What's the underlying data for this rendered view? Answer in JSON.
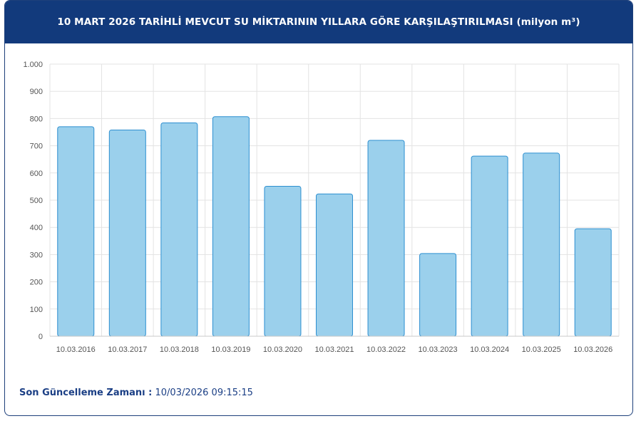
{
  "header": {
    "title": "10 MART 2026 TARİHLİ MEVCUT SU MİKTARININ YILLARA GÖRE KARŞILAŞTIRILMASI (milyon m³)"
  },
  "footer": {
    "label": "Son Güncelleme Zamanı :",
    "value": "10/03/2026 09:15:15"
  },
  "colors": {
    "header_bg": "#123a7c",
    "bar_fill": "#9bd0ec",
    "bar_stroke": "#2d8fd0",
    "footer_text": "#1b3f85"
  },
  "chart_data": {
    "type": "bar",
    "title": "10 MART 2026 TARİHLİ MEVCUT SU MİKTARININ YILLARA GÖRE KARŞILAŞTIRILMASI (milyon m³)",
    "categories": [
      "10.03.2016",
      "10.03.2017",
      "10.03.2018",
      "10.03.2019",
      "10.03.2020",
      "10.03.2021",
      "10.03.2022",
      "10.03.2023",
      "10.03.2024",
      "10.03.2025",
      "10.03.2026"
    ],
    "values": [
      770,
      758,
      784,
      807,
      551,
      523,
      720,
      304,
      662,
      673,
      395
    ],
    "ylim": [
      0,
      1000
    ],
    "yticks": [
      0,
      100,
      200,
      300,
      400,
      500,
      600,
      700,
      800,
      900,
      1000
    ],
    "ytick_labels": [
      "0",
      "100",
      "200",
      "300",
      "400",
      "500",
      "600",
      "700",
      "800",
      "900",
      "1.000"
    ],
    "grid": true,
    "legend": "none"
  }
}
